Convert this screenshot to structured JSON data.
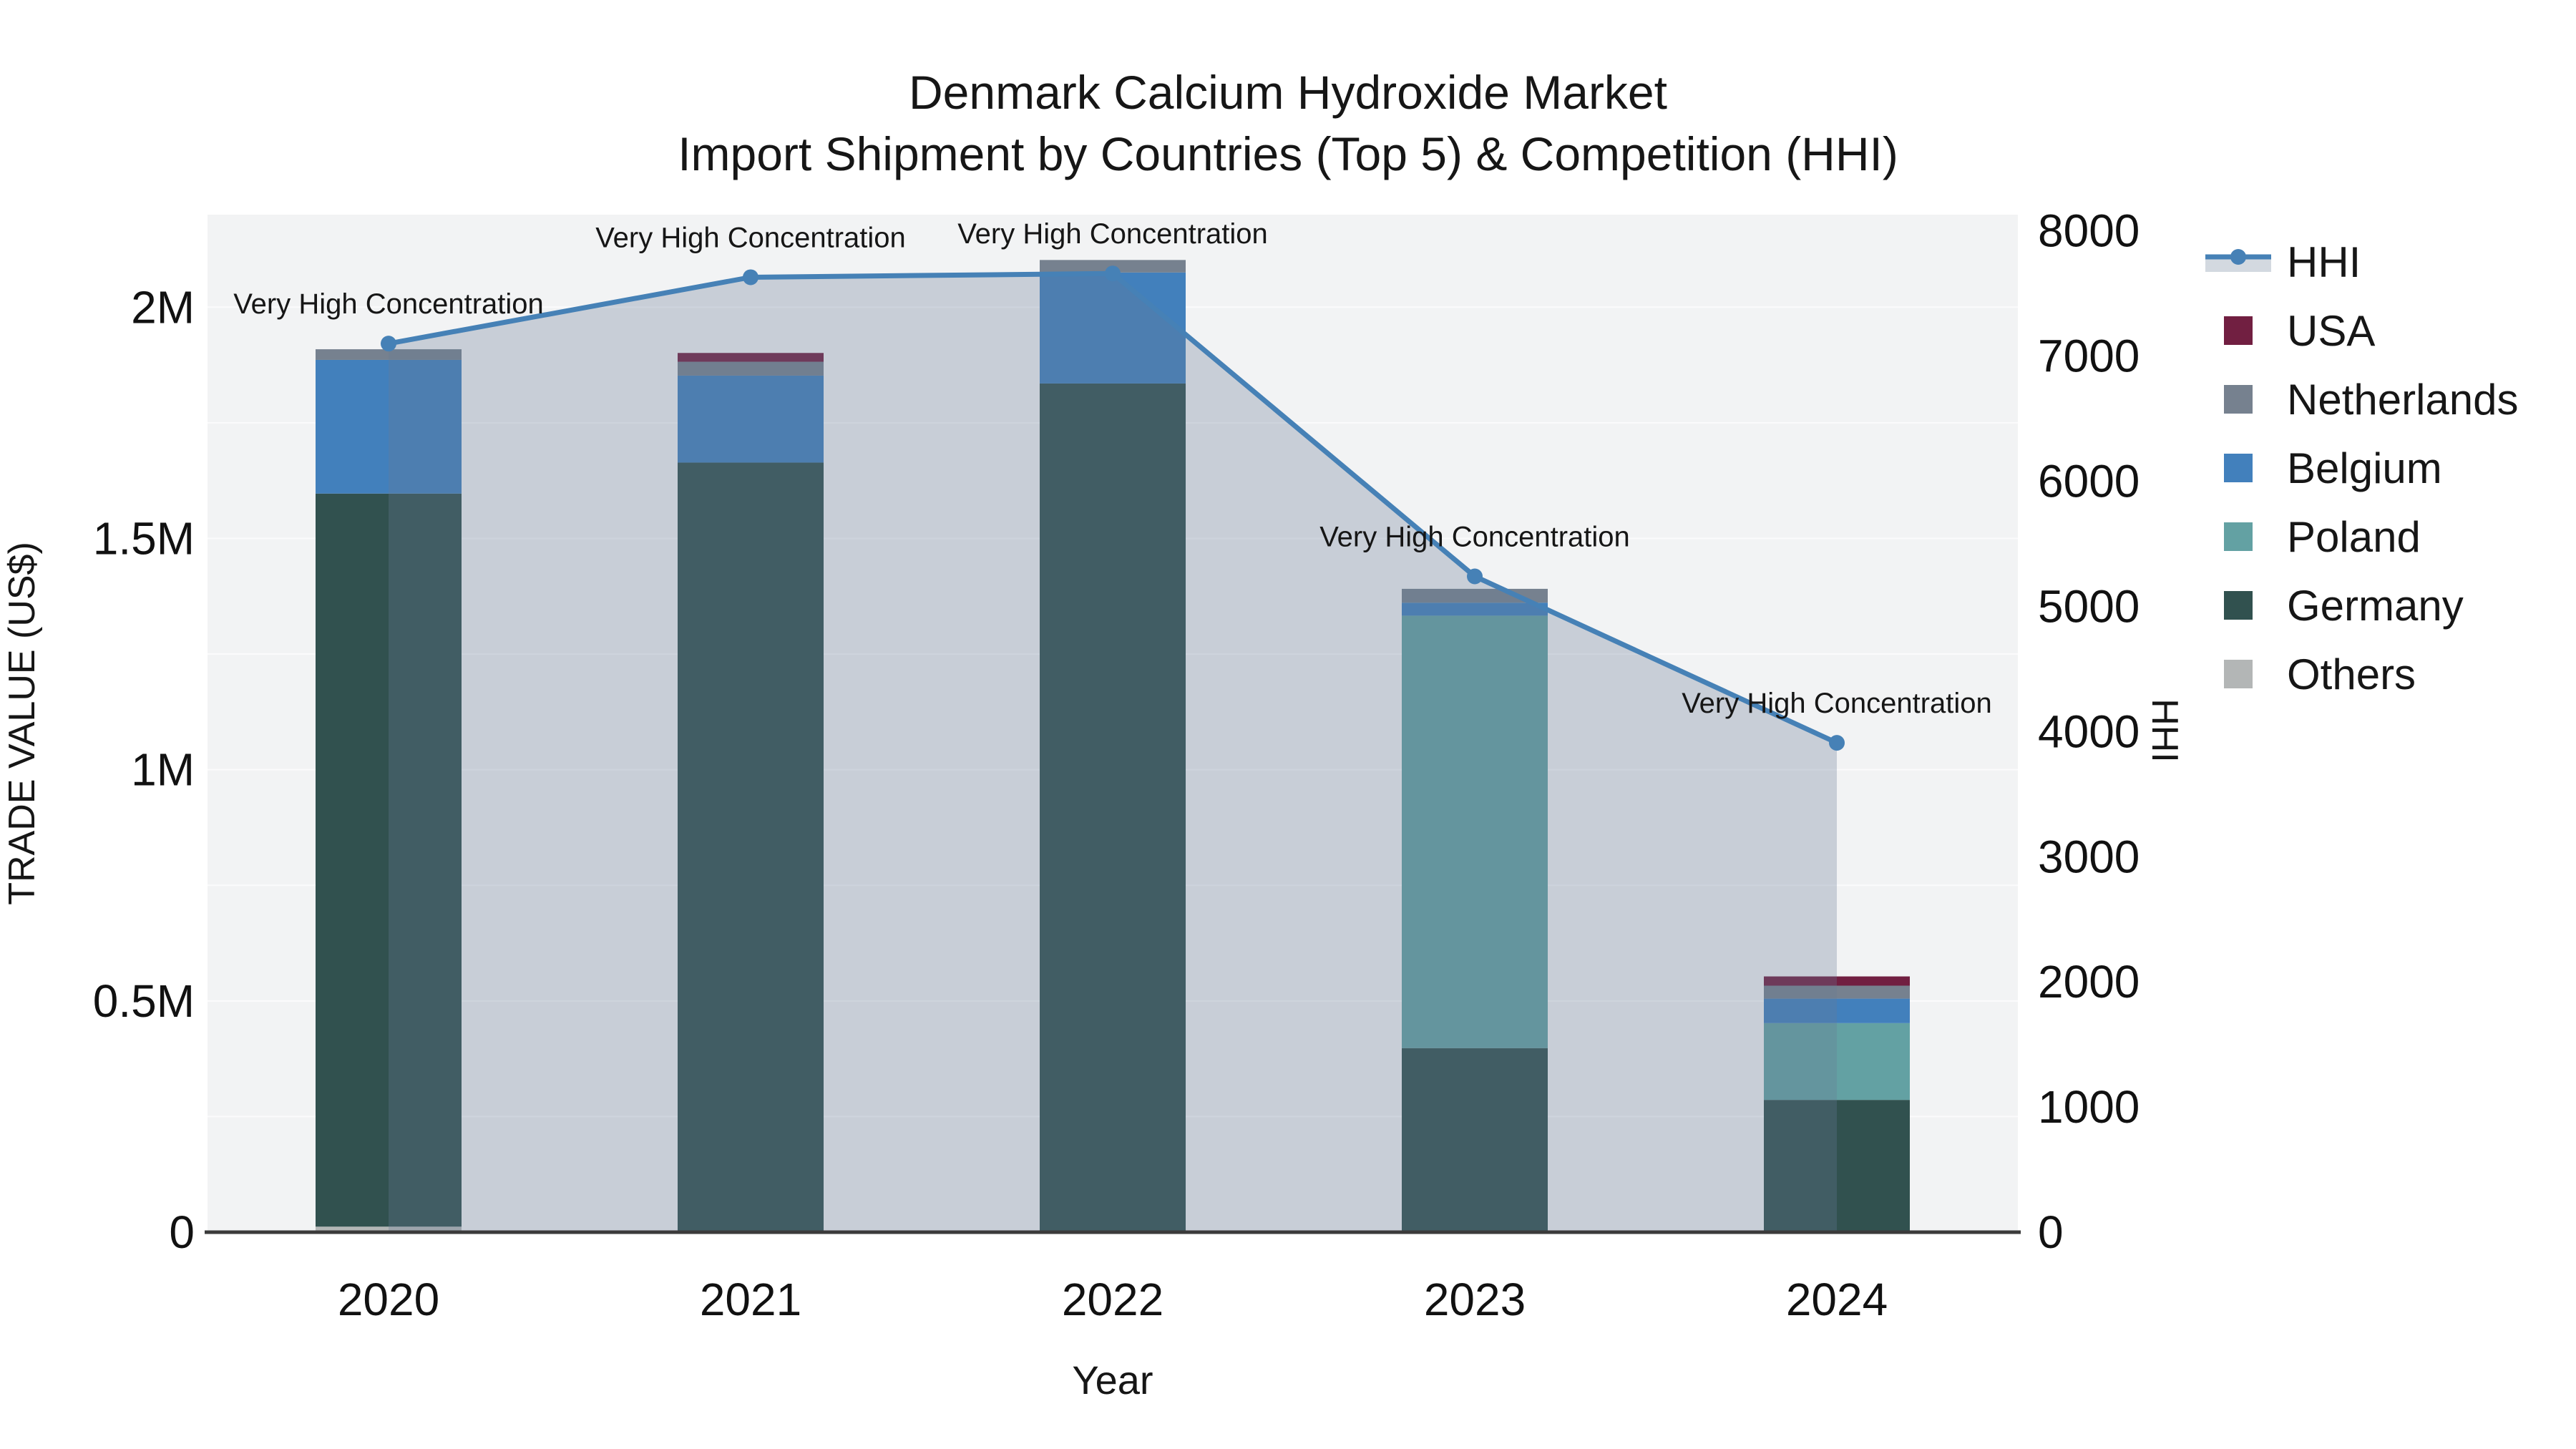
{
  "title": {
    "line1": "Denmark Calcium Hydroxide Market",
    "line2": "Import Shipment by Countries (Top 5) & Competition (HHI)"
  },
  "axes": {
    "x": {
      "title": "Year",
      "categories": [
        "2020",
        "2021",
        "2022",
        "2023",
        "2024"
      ]
    },
    "y_left": {
      "title": "TRADE VALUE (US$)",
      "range": [
        0,
        2200000
      ],
      "ticks": [
        {
          "value": 0,
          "label": "0"
        },
        {
          "value": 500000,
          "label": "0.5M"
        },
        {
          "value": 1000000,
          "label": "1M"
        },
        {
          "value": 1500000,
          "label": "1.5M"
        },
        {
          "value": 2000000,
          "label": "2M"
        }
      ],
      "grid_step": 250000
    },
    "y_right": {
      "title": "HHI",
      "range": [
        0,
        8130
      ],
      "ticks": [
        {
          "value": 0,
          "label": "0"
        },
        {
          "value": 1000,
          "label": "1000"
        },
        {
          "value": 2000,
          "label": "2000"
        },
        {
          "value": 3000,
          "label": "3000"
        },
        {
          "value": 4000,
          "label": "4000"
        },
        {
          "value": 5000,
          "label": "5000"
        },
        {
          "value": 6000,
          "label": "6000"
        },
        {
          "value": 7000,
          "label": "7000"
        },
        {
          "value": 8000,
          "label": "8000"
        }
      ]
    }
  },
  "legend": {
    "items": [
      {
        "label": "HHI",
        "type": "line",
        "color": "#4681B6",
        "band_color": "#D3D9E0"
      },
      {
        "label": "USA",
        "type": "swatch",
        "color": "#711F41"
      },
      {
        "label": "Netherlands",
        "type": "swatch",
        "color": "#76818F"
      },
      {
        "label": "Belgium",
        "type": "swatch",
        "color": "#4280BC"
      },
      {
        "label": "Poland",
        "type": "swatch",
        "color": "#63A1A3"
      },
      {
        "label": "Germany",
        "type": "swatch",
        "color": "#31514F"
      },
      {
        "label": "Others",
        "type": "swatch",
        "color": "#B3B6B6"
      }
    ]
  },
  "chart_data": {
    "type": "bar",
    "subtype": "stacked-bars-with-line-overlay",
    "categories": [
      "2020",
      "2021",
      "2022",
      "2023",
      "2024"
    ],
    "bar_unit": "US$",
    "stack_order_bottom_to_top": [
      "Others",
      "Germany",
      "Poland",
      "Belgium",
      "Netherlands",
      "USA"
    ],
    "series": [
      {
        "name": "Others",
        "color": "#B3B6B6",
        "values": [
          12000,
          0,
          0,
          0,
          0
        ]
      },
      {
        "name": "Germany",
        "color": "#31514F",
        "values": [
          1585000,
          1664000,
          1835000,
          398000,
          286000
        ]
      },
      {
        "name": "Poland",
        "color": "#63A1A3",
        "values": [
          0,
          0,
          0,
          935000,
          166000
        ]
      },
      {
        "name": "Belgium",
        "color": "#4280BC",
        "values": [
          289000,
          188000,
          240000,
          28000,
          53000
        ]
      },
      {
        "name": "Netherlands",
        "color": "#76818F",
        "values": [
          23000,
          30000,
          27000,
          30000,
          28000
        ]
      },
      {
        "name": "USA",
        "color": "#711F41",
        "values": [
          0,
          19000,
          0,
          0,
          20000
        ]
      }
    ],
    "bar_totals": [
      1909000,
      1901000,
      2102000,
      1391000,
      553000
    ],
    "line_series": {
      "name": "HHI",
      "color": "#4681B6",
      "fill_color": "rgba(103,122,150,0.30)",
      "values": [
        7100,
        7630,
        7660,
        5240,
        3910
      ]
    },
    "annotations": [
      {
        "x": "2020",
        "text": "Very High Concentration"
      },
      {
        "x": "2021",
        "text": "Very High Concentration"
      },
      {
        "x": "2022",
        "text": "Very High Concentration"
      },
      {
        "x": "2023",
        "text": "Very High Concentration"
      },
      {
        "x": "2024",
        "text": "Very High Concentration"
      }
    ],
    "xlabel": "Year",
    "ylabel_left": "TRADE VALUE (US$)",
    "ylabel_right": "HHI",
    "ylim_left": [
      0,
      2200000
    ],
    "ylim_right": [
      0,
      8130
    ],
    "grid": "horizontal",
    "legend_position": "right",
    "plot_bg": "#F2F3F4",
    "grid_color": "#FBFBFC",
    "axisline_color": "#3B3B3B"
  }
}
